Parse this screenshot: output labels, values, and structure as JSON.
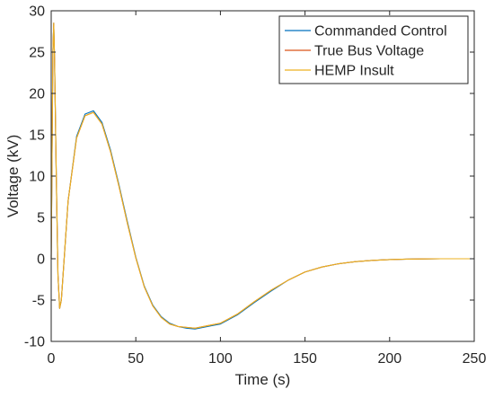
{
  "chart_data": {
    "type": "line",
    "title": "",
    "xlabel": "Time (s)",
    "ylabel": "Voltage (kV)",
    "xlim": [
      0,
      250
    ],
    "ylim": [
      -10,
      30
    ],
    "xticks": [
      0,
      50,
      100,
      150,
      200,
      250
    ],
    "yticks": [
      -10,
      -5,
      0,
      5,
      10,
      15,
      20,
      25,
      30
    ],
    "grid": false,
    "legend_position": "top-right",
    "series": [
      {
        "name": "Commanded Control",
        "color": "#0072BD",
        "x": [
          0,
          1,
          1.5,
          2,
          3,
          4,
          5,
          6,
          8,
          10,
          15,
          20,
          25,
          30,
          35,
          40,
          45,
          50,
          55,
          60,
          65,
          70,
          75,
          80,
          85,
          90,
          95,
          100,
          110,
          120,
          130,
          140,
          150,
          160,
          170,
          180,
          190,
          200,
          210,
          220,
          230,
          240,
          250
        ],
        "y": [
          0,
          25,
          28.5,
          24,
          10,
          -2,
          -6,
          -5,
          1,
          7,
          14.8,
          17.5,
          17.9,
          16.5,
          13.2,
          9,
          4.5,
          0.2,
          -3.3,
          -5.6,
          -7,
          -7.8,
          -8.2,
          -8.4,
          -8.5,
          -8.3,
          -8.1,
          -7.9,
          -6.8,
          -5.3,
          -3.9,
          -2.6,
          -1.6,
          -1,
          -0.6,
          -0.35,
          -0.2,
          -0.1,
          -0.05,
          -0.02,
          0,
          0,
          0
        ]
      },
      {
        "name": "True Bus Voltage",
        "color": "#D95319",
        "x": [
          0,
          1,
          1.5,
          2,
          3,
          4,
          5,
          6,
          8,
          10,
          15,
          20,
          25,
          30,
          35,
          40,
          45,
          50,
          55,
          60,
          65,
          70,
          75,
          80,
          85,
          90,
          95,
          100,
          110,
          120,
          130,
          140,
          150,
          160,
          170,
          180,
          190,
          200,
          210,
          220,
          230,
          240,
          250
        ],
        "y": [
          0,
          25,
          28.5,
          24,
          10,
          -2,
          -6,
          -5,
          1,
          7,
          14.6,
          17.3,
          17.7,
          16.3,
          13,
          8.8,
          4.3,
          0.1,
          -3.4,
          -5.7,
          -7.1,
          -7.9,
          -8.2,
          -8.3,
          -8.4,
          -8.2,
          -8,
          -7.8,
          -6.7,
          -5.2,
          -3.8,
          -2.6,
          -1.6,
          -1,
          -0.6,
          -0.35,
          -0.2,
          -0.1,
          -0.05,
          -0.02,
          0,
          0,
          0
        ]
      },
      {
        "name": "HEMP Insult",
        "color": "#EDB120",
        "x": [
          0,
          1,
          1.5,
          2,
          3,
          4,
          5,
          6,
          8,
          10,
          15,
          20,
          25,
          30,
          35,
          40,
          45,
          50,
          55,
          60,
          65,
          70,
          75,
          80,
          85,
          90,
          95,
          100,
          110,
          120,
          130,
          140,
          150,
          160,
          170,
          180,
          190,
          200,
          210,
          220,
          230,
          240,
          250
        ],
        "y": [
          0,
          25,
          28.5,
          24,
          10,
          -2,
          -6,
          -5,
          1,
          7,
          14.6,
          17.3,
          17.7,
          16.3,
          13,
          8.8,
          4.3,
          0.1,
          -3.4,
          -5.7,
          -7.1,
          -7.9,
          -8.2,
          -8.3,
          -8.4,
          -8.2,
          -8,
          -7.8,
          -6.7,
          -5.2,
          -3.8,
          -2.6,
          -1.6,
          -1,
          -0.6,
          -0.35,
          -0.2,
          -0.1,
          -0.05,
          -0.02,
          0,
          0,
          0
        ]
      }
    ]
  }
}
